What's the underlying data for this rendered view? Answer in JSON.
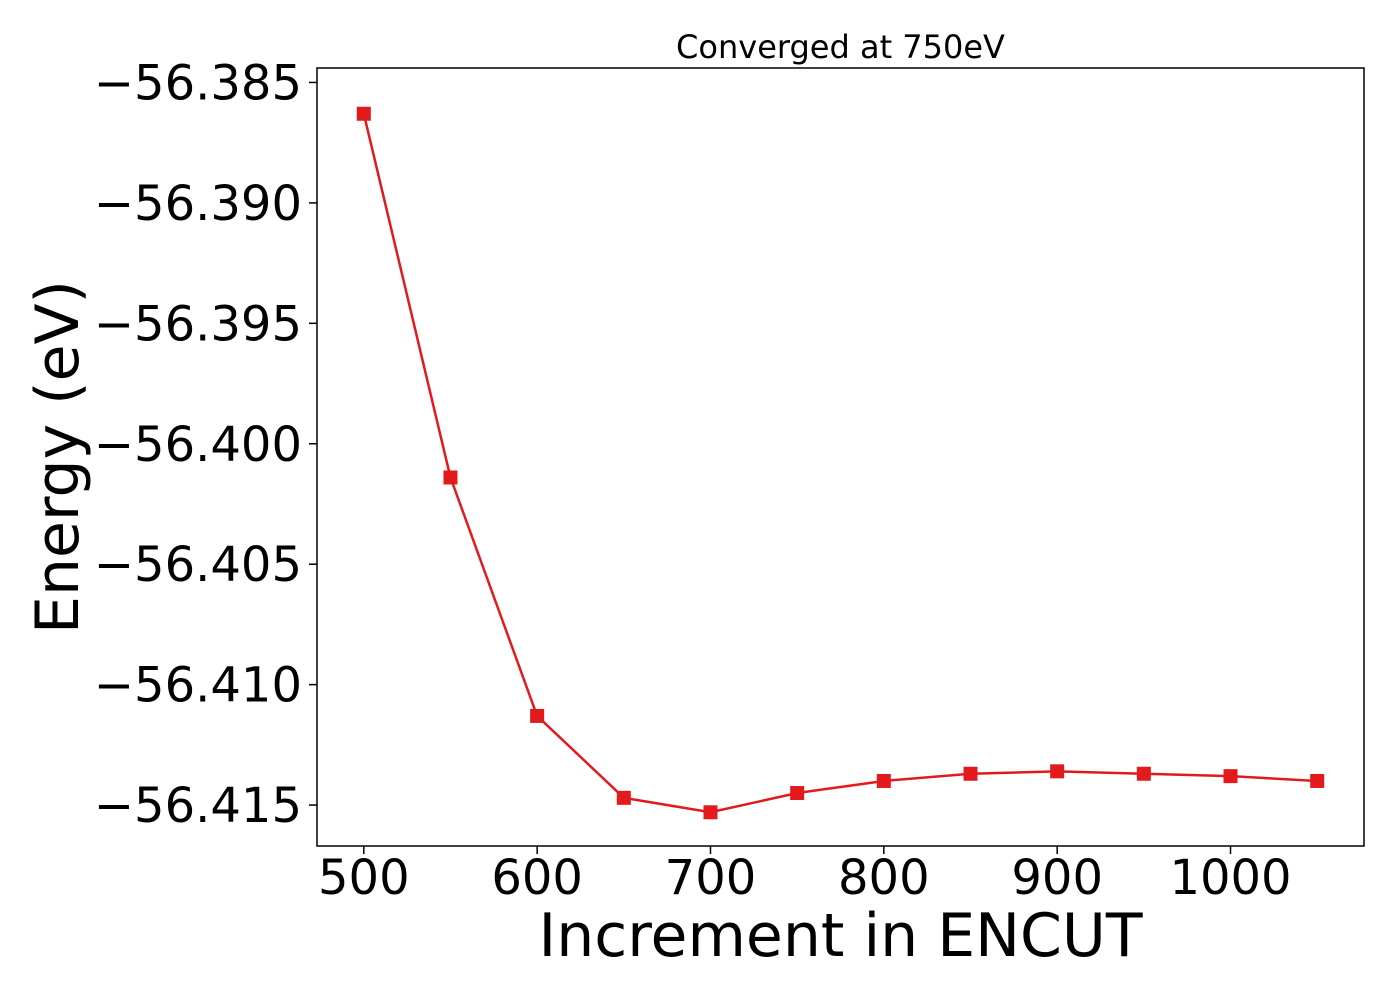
{
  "chart_data": {
    "type": "line",
    "title": "Converged at 750eV",
    "xlabel": "Increment in ENCUT",
    "ylabel": "Energy (eV)",
    "xlim": [
      473,
      1077
    ],
    "ylim": [
      -56.4167,
      -56.3844
    ],
    "xticks": [
      500,
      600,
      700,
      800,
      900,
      1000
    ],
    "yticks": [
      -56.385,
      -56.39,
      -56.395,
      -56.4,
      -56.405,
      -56.41,
      -56.415
    ],
    "ytick_labels": [
      "−56.385",
      "−56.390",
      "−56.395",
      "−56.400",
      "−56.405",
      "−56.410",
      "−56.415"
    ],
    "grid": false,
    "legend": "none",
    "series": [
      {
        "color": "#e31a1c",
        "marker": "square",
        "x": [
          500,
          550,
          600,
          650,
          700,
          750,
          800,
          850,
          900,
          950,
          1000,
          1050
        ],
        "y": [
          -56.3863,
          -56.4014,
          -56.4113,
          -56.4147,
          -56.4153,
          -56.4145,
          -56.414,
          -56.4137,
          -56.4136,
          -56.4137,
          -56.4138,
          -56.414
        ]
      }
    ]
  }
}
